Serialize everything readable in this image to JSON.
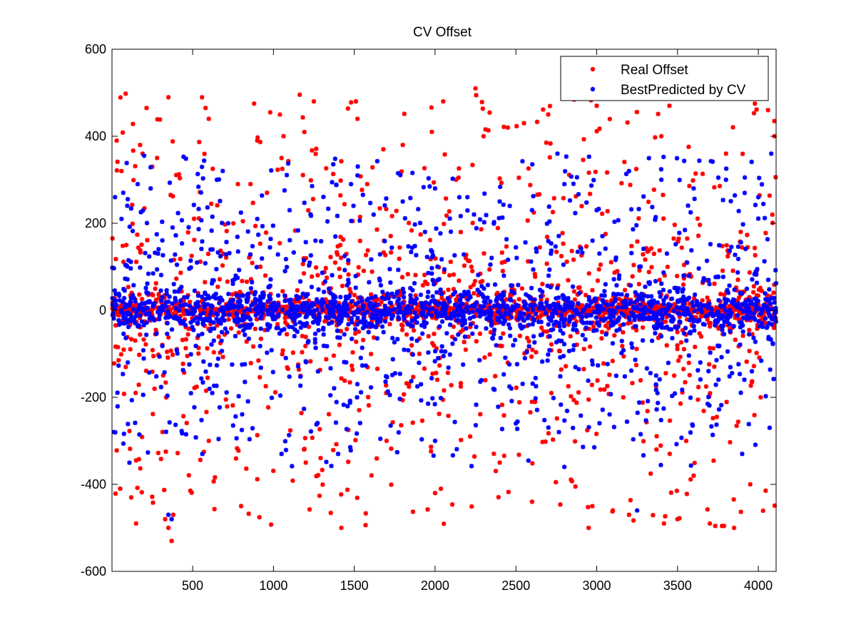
{
  "chart_data": {
    "type": "scatter",
    "title": "CV Offset",
    "xlabel": "",
    "ylabel": "",
    "xlim": [
      1,
      4110
    ],
    "ylim": [
      -600,
      600
    ],
    "x_ticks": [
      500,
      1000,
      1500,
      2000,
      2500,
      3000,
      3500,
      4000
    ],
    "y_ticks": [
      -600,
      -400,
      -200,
      0,
      200,
      400,
      600
    ],
    "x_tick_labels": [
      "500",
      "1000",
      "1500",
      "2000",
      "2500",
      "3000",
      "3500",
      "4000"
    ],
    "y_tick_labels": [
      "-600",
      "-400",
      "-200",
      "0",
      "200",
      "400",
      "600"
    ],
    "grid": false,
    "legend_position": "top-right",
    "series": [
      {
        "name": "Real Offset",
        "color": "#ff0000",
        "marker": "*",
        "n_points": 4100,
        "value_range": [
          -530,
          510
        ],
        "values": [
          [
            30,
            390
          ],
          [
            60,
            320
          ],
          [
            90,
            150
          ],
          [
            120,
            -430
          ],
          [
            150,
            -490
          ],
          [
            175,
            380
          ],
          [
            190,
            360
          ],
          [
            250,
            330
          ],
          [
            280,
            350
          ],
          [
            330,
            -480
          ],
          [
            350,
            -500
          ],
          [
            370,
            -530
          ],
          [
            380,
            -470
          ],
          [
            580,
            465
          ],
          [
            600,
            440
          ],
          [
            780,
            290
          ],
          [
            880,
            475
          ],
          [
            900,
            390
          ],
          [
            960,
            270
          ],
          [
            980,
            455
          ],
          [
            1050,
            350
          ],
          [
            1250,
            480
          ],
          [
            1420,
            -500
          ],
          [
            1510,
            480
          ],
          [
            1520,
            440
          ],
          [
            1580,
            290
          ],
          [
            1680,
            370
          ],
          [
            1800,
            380
          ],
          [
            1980,
            410
          ],
          [
            2050,
            480
          ],
          [
            2250,
            510
          ],
          [
            2300,
            400
          ],
          [
            2450,
            420
          ],
          [
            2550,
            430
          ],
          [
            2700,
            450
          ],
          [
            2950,
            -500
          ],
          [
            3000,
            470
          ],
          [
            3200,
            -470
          ],
          [
            3400,
            400
          ],
          [
            3450,
            470
          ],
          [
            3500,
            -480
          ],
          [
            3700,
            -490
          ],
          [
            3800,
            360
          ],
          [
            3850,
            -500
          ],
          [
            4060,
            460
          ],
          [
            4100,
            400
          ],
          [
            1200,
            -350
          ],
          [
            800,
            -450
          ],
          [
            600,
            -300
          ],
          [
            2000,
            -420
          ],
          [
            2600,
            -440
          ],
          [
            3100,
            -460
          ],
          [
            3600,
            -380
          ],
          [
            3950,
            -400
          ],
          [
            1700,
            -300
          ],
          [
            2400,
            -350
          ]
        ]
      },
      {
        "name": "BestPredicted by CV",
        "color": "#0000ff",
        "marker": "*",
        "n_points": 4100,
        "value_range": [
          -480,
          360
        ],
        "values": [
          [
            20,
            260
          ],
          [
            60,
            210
          ],
          [
            160,
            290
          ],
          [
            240,
            280
          ],
          [
            350,
            -470
          ],
          [
            370,
            -480
          ],
          [
            560,
            -330
          ],
          [
            650,
            300
          ],
          [
            720,
            200
          ],
          [
            900,
            210
          ],
          [
            1100,
            230
          ],
          [
            1260,
            160
          ],
          [
            1480,
            290
          ],
          [
            1520,
            310
          ],
          [
            1620,
            220
          ],
          [
            1800,
            250
          ],
          [
            2000,
            280
          ],
          [
            2200,
            260
          ],
          [
            2400,
            250
          ],
          [
            2600,
            230
          ],
          [
            2800,
            290
          ],
          [
            3000,
            230
          ],
          [
            3200,
            320
          ],
          [
            3400,
            300
          ],
          [
            3600,
            280
          ],
          [
            3800,
            300
          ],
          [
            4000,
            260
          ],
          [
            4080,
            360
          ],
          [
            3250,
            -460
          ],
          [
            3900,
            -330
          ],
          [
            1400,
            -330
          ],
          [
            1050,
            -330
          ],
          [
            2800,
            -360
          ],
          [
            2000,
            -300
          ],
          [
            2500,
            -260
          ],
          [
            4070,
            -270
          ]
        ]
      }
    ]
  }
}
